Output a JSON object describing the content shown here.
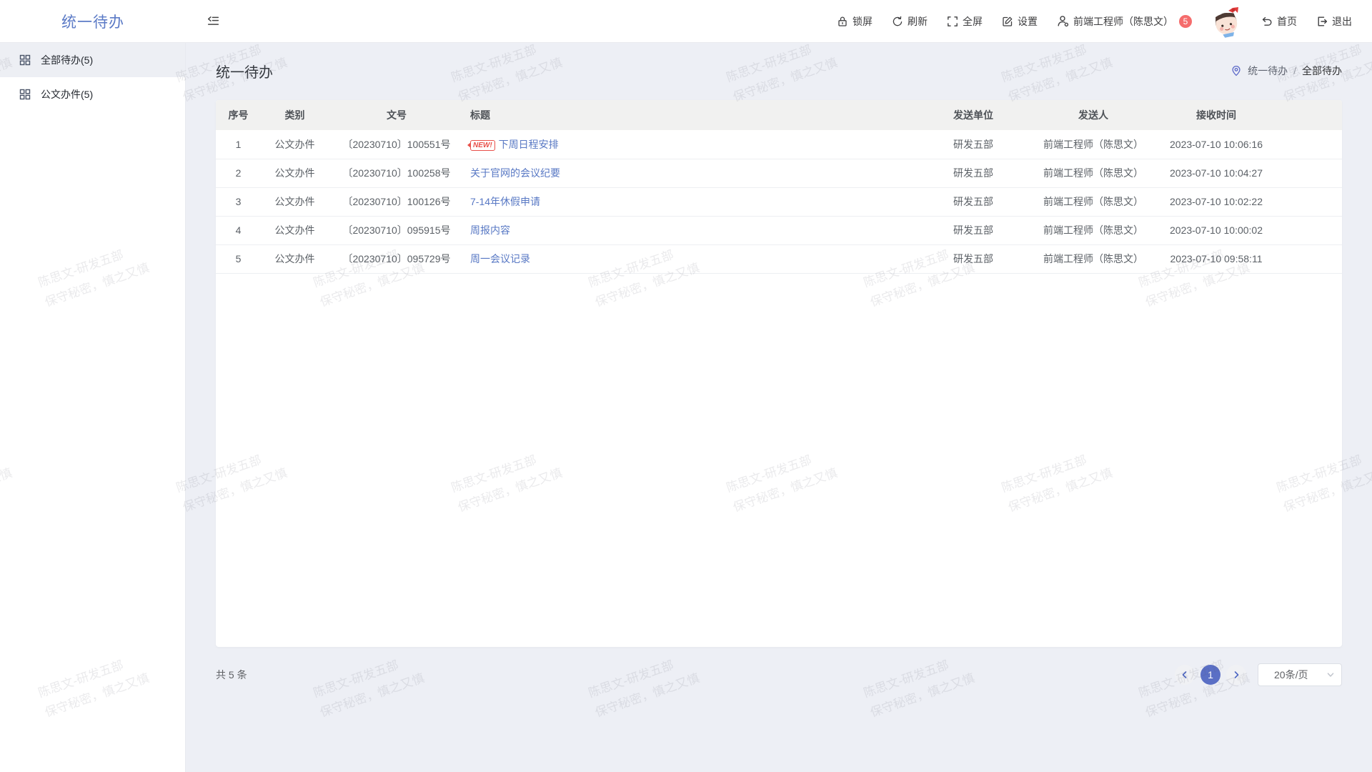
{
  "topbar": {
    "logo": "统一待办",
    "lock_label": "锁屏",
    "refresh_label": "刷新",
    "fullscreen_label": "全屏",
    "settings_label": "设置",
    "user_label": "前端工程师（陈思文）",
    "user_badge": "5",
    "home_label": "首页",
    "logout_label": "退出"
  },
  "sidebar": {
    "items": [
      {
        "label": "全部待办(5)",
        "active": true
      },
      {
        "label": "公文办件(5)",
        "active": false
      }
    ]
  },
  "page": {
    "title": "统一待办",
    "breadcrumb": {
      "root": "统一待办",
      "separator": "/",
      "current": "全部待办"
    }
  },
  "table": {
    "headers": [
      "序号",
      "类别",
      "文号",
      "标题",
      "发送单位",
      "发送人",
      "接收时间"
    ],
    "new_badge": "NEW!",
    "rows": [
      {
        "no": "1",
        "category": "公文办件",
        "doc_no": "〔20230710〕100551号",
        "title": "下周日程安排",
        "is_new": true,
        "unit": "研发五部",
        "sender": "前端工程师（陈思文）",
        "time": "2023-07-10 10:06:16"
      },
      {
        "no": "2",
        "category": "公文办件",
        "doc_no": "〔20230710〕100258号",
        "title": "关于官网的会议纪要",
        "is_new": false,
        "unit": "研发五部",
        "sender": "前端工程师（陈思文）",
        "time": "2023-07-10 10:04:27"
      },
      {
        "no": "3",
        "category": "公文办件",
        "doc_no": "〔20230710〕100126号",
        "title": "7-14年休假申请",
        "is_new": false,
        "unit": "研发五部",
        "sender": "前端工程师（陈思文）",
        "time": "2023-07-10 10:02:22"
      },
      {
        "no": "4",
        "category": "公文办件",
        "doc_no": "〔20230710〕095915号",
        "title": "周报内容",
        "is_new": false,
        "unit": "研发五部",
        "sender": "前端工程师（陈思文）",
        "time": "2023-07-10 10:00:02"
      },
      {
        "no": "5",
        "category": "公文办件",
        "doc_no": "〔20230710〕095729号",
        "title": "周一会议记录",
        "is_new": false,
        "unit": "研发五部",
        "sender": "前端工程师（陈思文）",
        "time": "2023-07-10 09:58:11"
      }
    ]
  },
  "footer": {
    "total": "共 5 条",
    "current_page": "1",
    "page_size": "20条/页"
  },
  "watermark": {
    "line1": "陈思文-研发五部",
    "line2": "保守秘密，慎之又慎"
  },
  "colors": {
    "accent": "#5878C4",
    "pager_active": "#5A6FC5",
    "badge": "#F56C6C",
    "new_badge": "#E8504A",
    "background": "#EDEFF5"
  }
}
